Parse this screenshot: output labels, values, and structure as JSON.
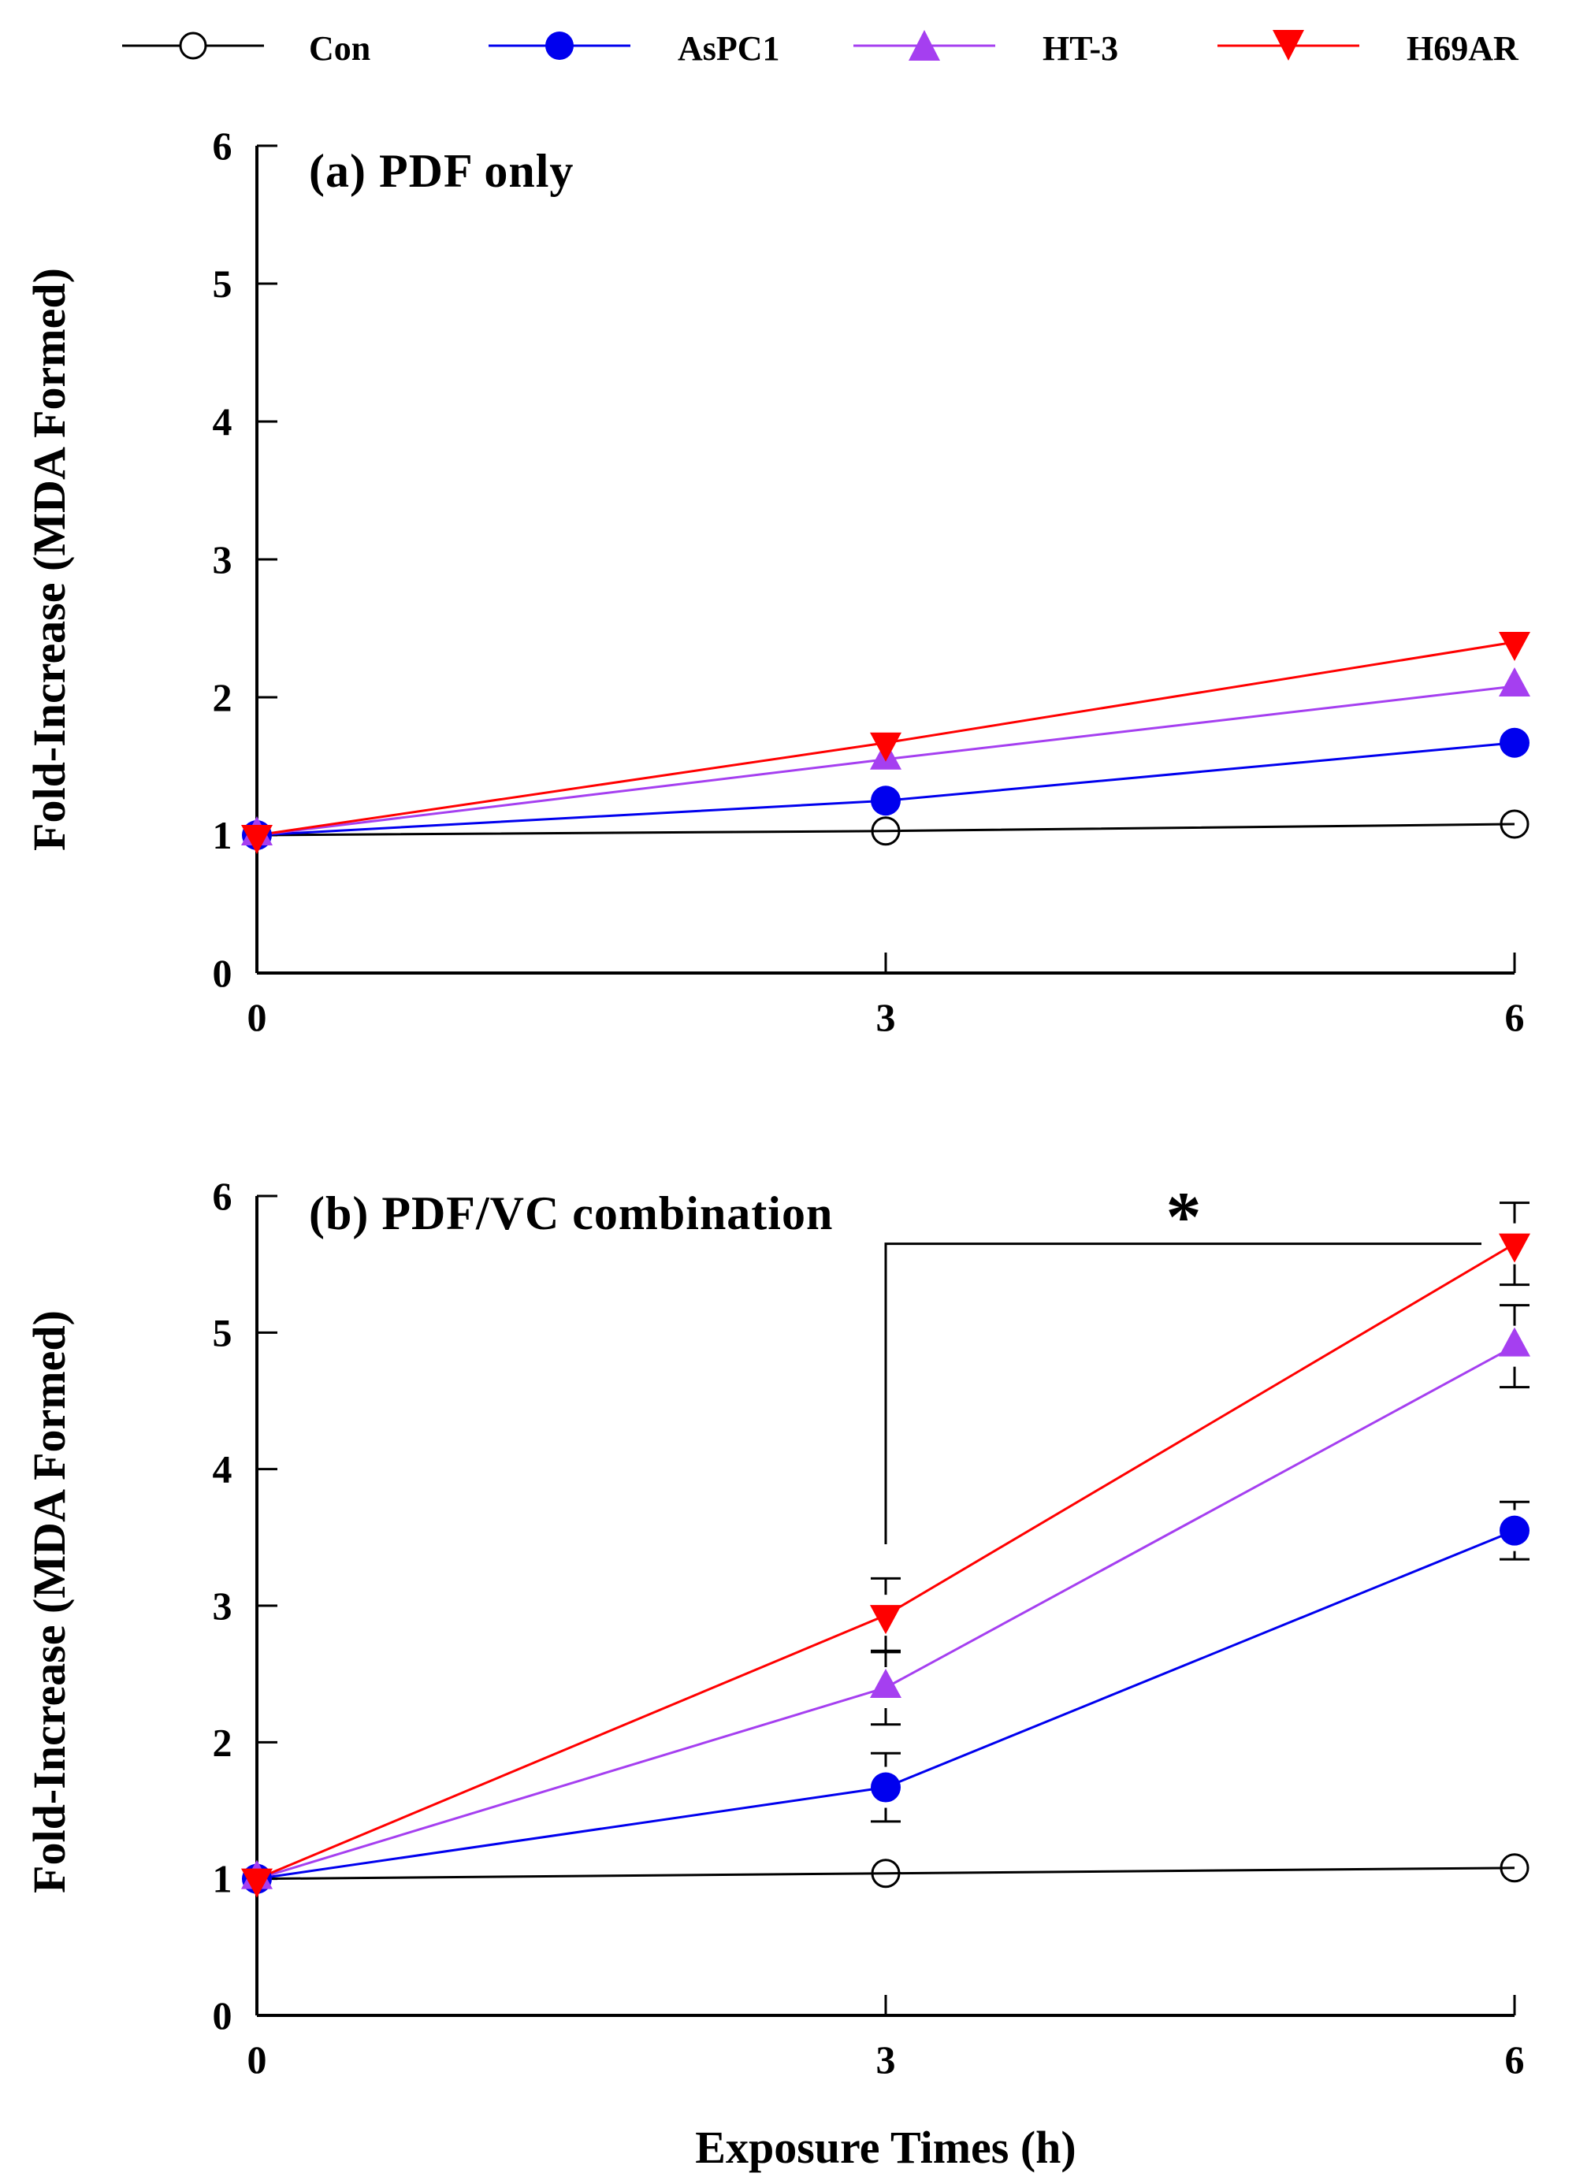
{
  "chart_data": {
    "type": "line",
    "legend": {
      "placement": "top",
      "entries": [
        {
          "name": "Con",
          "color": "#000000",
          "marker": "open-circle"
        },
        {
          "name": "AsPC1",
          "color": "#0000ee",
          "marker": "filled-circle"
        },
        {
          "name": "HT-3",
          "color": "#a53ff0",
          "marker": "triangle-up"
        },
        {
          "name": "H69AR",
          "color": "#ff0000",
          "marker": "triangle-down"
        }
      ]
    },
    "shared_xlabel": "Exposure Times (h)",
    "panels": [
      {
        "title": "(a) PDF only",
        "xlabel": "",
        "ylabel": "Fold-Increase (MDA Formed)",
        "x": [
          0,
          3,
          6
        ],
        "xticks": [
          "0",
          "3",
          "6"
        ],
        "xlim": [
          0,
          6
        ],
        "ylim": [
          0,
          6
        ],
        "yticks": [
          "0",
          "1",
          "2",
          "3",
          "4",
          "5",
          "6"
        ],
        "grid": false,
        "series": [
          {
            "name": "Con",
            "values": [
              1.0,
              1.03,
              1.08
            ],
            "errors": [
              0,
              0,
              0
            ]
          },
          {
            "name": "AsPC1",
            "values": [
              1.0,
              1.25,
              1.67
            ],
            "errors": [
              0,
              0,
              0
            ]
          },
          {
            "name": "HT-3",
            "values": [
              1.0,
              1.55,
              2.08
            ],
            "errors": [
              0,
              0,
              0
            ]
          },
          {
            "name": "H69AR",
            "values": [
              1.0,
              1.67,
              2.4
            ],
            "errors": [
              0,
              0,
              0
            ]
          }
        ]
      },
      {
        "title": "(b) PDF/VC combination",
        "xlabel": "Exposure Times (h)",
        "ylabel": "Fold-Increase (MDA Formed)",
        "x": [
          0,
          3,
          6
        ],
        "xticks": [
          "0",
          "3",
          "6"
        ],
        "xlim": [
          0,
          6
        ],
        "ylim": [
          0,
          6
        ],
        "yticks": [
          "0",
          "1",
          "2",
          "3",
          "4",
          "5",
          "6"
        ],
        "grid": false,
        "series": [
          {
            "name": "Con",
            "values": [
              1.0,
              1.04,
              1.08
            ],
            "errors": [
              0,
              0,
              0
            ]
          },
          {
            "name": "AsPC1",
            "values": [
              1.0,
              1.67,
              3.55
            ],
            "errors": [
              0,
              0.25,
              0.21
            ]
          },
          {
            "name": "HT-3",
            "values": [
              1.0,
              2.4,
              4.9
            ],
            "errors": [
              0,
              0.27,
              0.3
            ]
          },
          {
            "name": "H69AR",
            "values": [
              1.0,
              2.93,
              5.65
            ],
            "errors": [
              0,
              0.27,
              0.3
            ]
          }
        ],
        "annotations": [
          {
            "type": "significance-bracket",
            "label": "*",
            "from_x": 3,
            "to_x": 6,
            "start_y": 3.45,
            "bar_y": 5.65
          }
        ]
      }
    ]
  }
}
